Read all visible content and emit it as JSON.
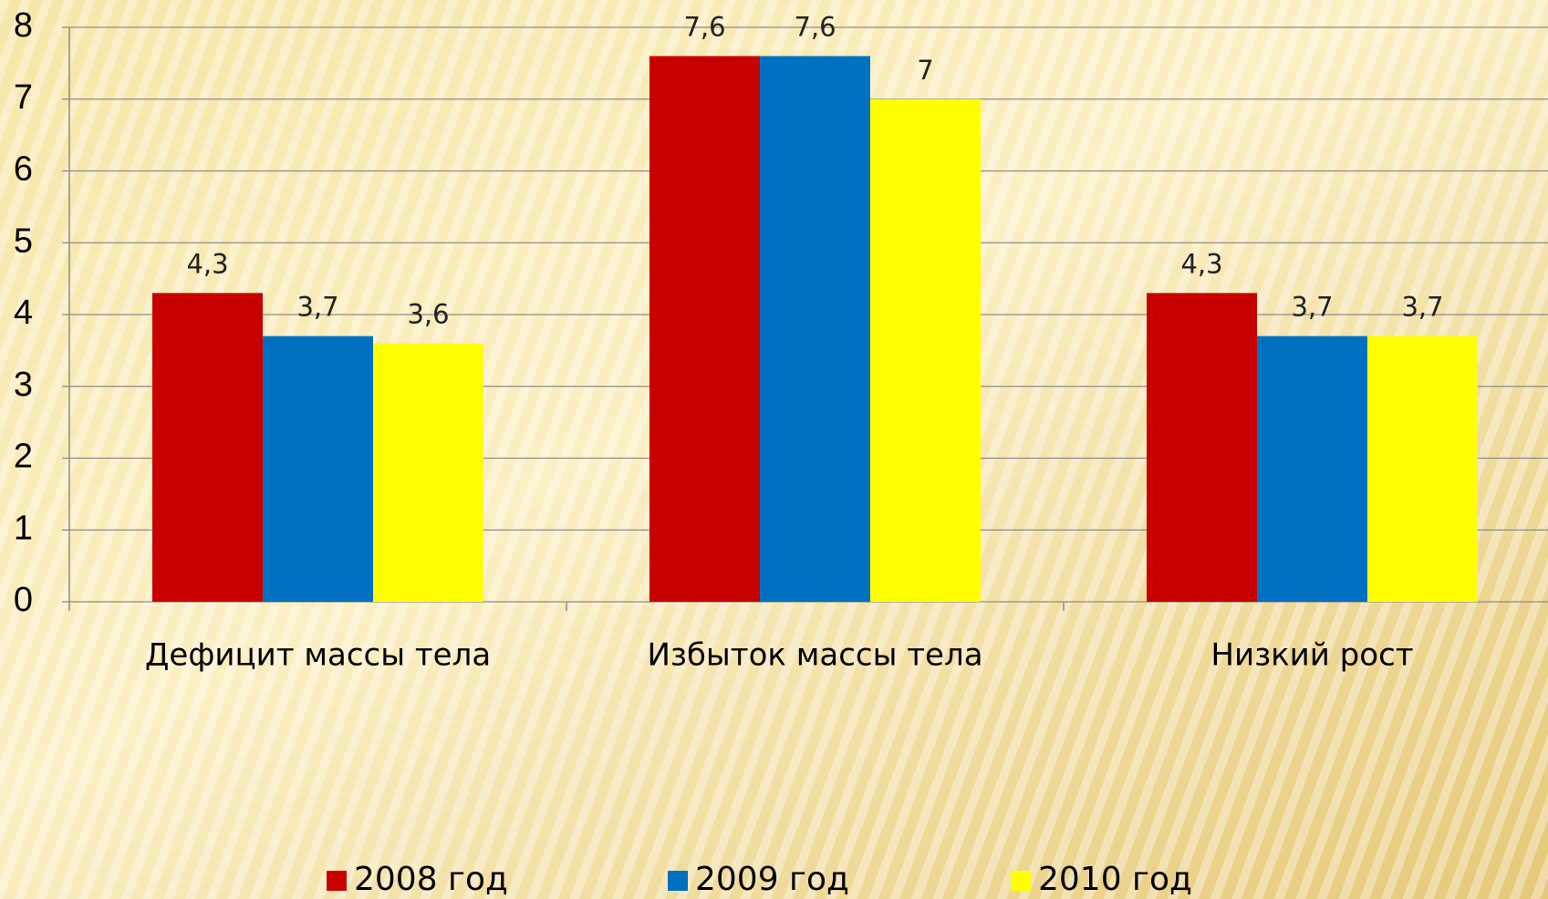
{
  "chart_data": {
    "type": "bar",
    "categories": [
      "Дефицит массы тела",
      "Избыток массы тела",
      "Низкий рост"
    ],
    "series": [
      {
        "name": "2008 год",
        "color": "#c80000",
        "values": [
          4.3,
          7.6,
          4.3
        ],
        "value_labels": [
          "4,3",
          "7,6",
          "4,3"
        ]
      },
      {
        "name": "2009 год",
        "color": "#0070c0",
        "values": [
          3.7,
          7.6,
          3.7
        ],
        "value_labels": [
          "3,7",
          "7,6",
          "3,7"
        ]
      },
      {
        "name": "2010 год",
        "color": "#ffff00",
        "values": [
          3.6,
          7,
          3.7
        ],
        "value_labels": [
          "3,6",
          "7",
          "3,7"
        ]
      }
    ],
    "ylim": [
      0,
      8
    ],
    "yticks": [
      0,
      1,
      2,
      3,
      4,
      5,
      6,
      7,
      8
    ],
    "grid": true,
    "legend": "bottom"
  }
}
